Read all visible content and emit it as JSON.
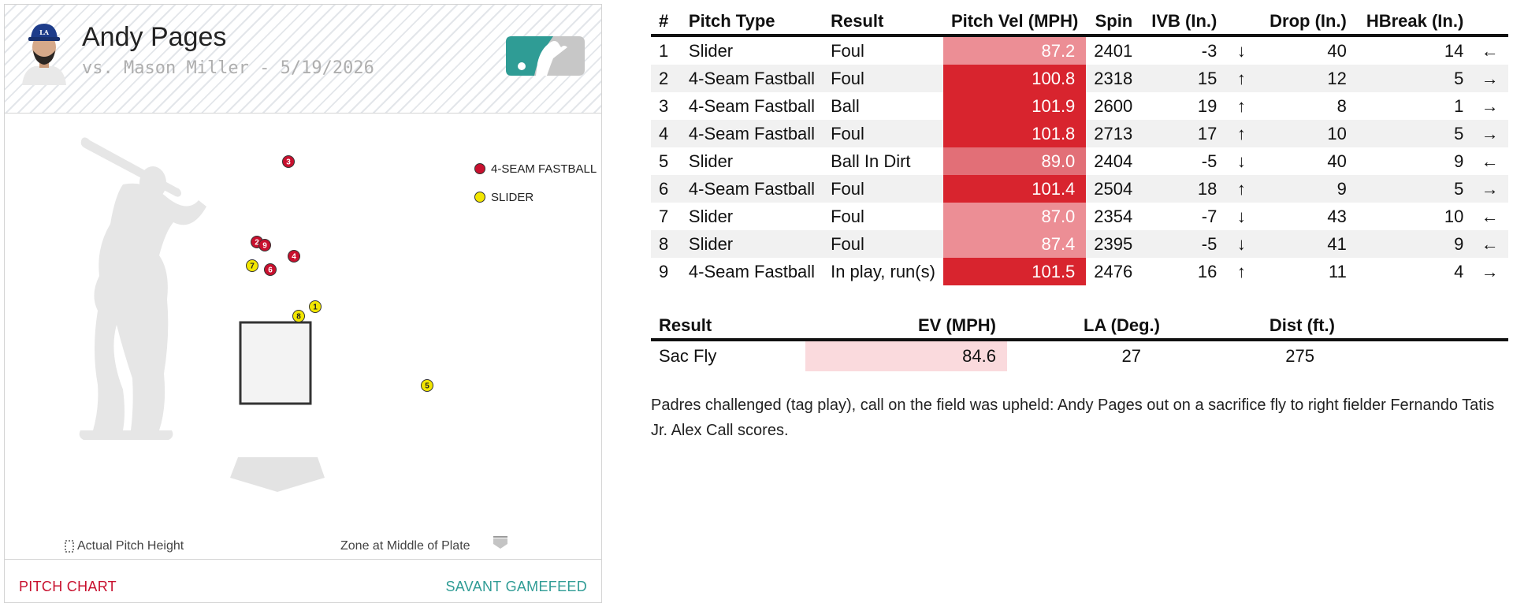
{
  "player": {
    "name": "Andy Pages",
    "matchup": "vs. Mason Miller - 5/19/2026"
  },
  "chart": {
    "legend": [
      {
        "label": "4-SEAM FASTBALL",
        "color": "#c8102e"
      },
      {
        "label": "SLIDER",
        "color": "#f2e600"
      }
    ],
    "pitches": [
      {
        "n": "1",
        "type": "slider"
      },
      {
        "n": "2",
        "type": "fastball"
      },
      {
        "n": "3",
        "type": "fastball"
      },
      {
        "n": "4",
        "type": "fastball"
      },
      {
        "n": "5",
        "type": "slider"
      },
      {
        "n": "6",
        "type": "fastball"
      },
      {
        "n": "7",
        "type": "slider"
      },
      {
        "n": "8",
        "type": "slider"
      },
      {
        "n": "9",
        "type": "fastball"
      }
    ],
    "note_left": "Actual Pitch Height",
    "note_right": "Zone at Middle of Plate"
  },
  "footer": {
    "left_link": "PITCH CHART",
    "right_link": "SAVANT GAMEFEED"
  },
  "pitch_table": {
    "headers": [
      "#",
      "Pitch Type",
      "Result",
      "Pitch Vel (MPH)",
      "Spin",
      "IVB (In.)",
      "",
      "Drop (In.)",
      "HBreak (In.)",
      ""
    ],
    "rows": [
      {
        "num": "1",
        "type": "Slider",
        "result": "Foul",
        "vel": "87.2",
        "spin": "2401",
        "ivb": "-3",
        "ivb_arrow": "↓",
        "drop": "40",
        "hbreak": "14",
        "hb_arrow": "←",
        "vel_color": "#ec8e95"
      },
      {
        "num": "2",
        "type": "4-Seam Fastball",
        "result": "Foul",
        "vel": "100.8",
        "spin": "2318",
        "ivb": "15",
        "ivb_arrow": "↑",
        "drop": "12",
        "hbreak": "5",
        "hb_arrow": "→",
        "vel_color": "#d8242e"
      },
      {
        "num": "3",
        "type": "4-Seam Fastball",
        "result": "Ball",
        "vel": "101.9",
        "spin": "2600",
        "ivb": "19",
        "ivb_arrow": "↑",
        "drop": "8",
        "hbreak": "1",
        "hb_arrow": "→",
        "vel_color": "#d8242e"
      },
      {
        "num": "4",
        "type": "4-Seam Fastball",
        "result": "Foul",
        "vel": "101.8",
        "spin": "2713",
        "ivb": "17",
        "ivb_arrow": "↑",
        "drop": "10",
        "hbreak": "5",
        "hb_arrow": "→",
        "vel_color": "#d8242e"
      },
      {
        "num": "5",
        "type": "Slider",
        "result": "Ball In Dirt",
        "vel": "89.0",
        "spin": "2404",
        "ivb": "-5",
        "ivb_arrow": "↓",
        "drop": "40",
        "hbreak": "9",
        "hb_arrow": "←",
        "vel_color": "#e26f77"
      },
      {
        "num": "6",
        "type": "4-Seam Fastball",
        "result": "Foul",
        "vel": "101.4",
        "spin": "2504",
        "ivb": "18",
        "ivb_arrow": "↑",
        "drop": "9",
        "hbreak": "5",
        "hb_arrow": "→",
        "vel_color": "#d8242e"
      },
      {
        "num": "7",
        "type": "Slider",
        "result": "Foul",
        "vel": "87.0",
        "spin": "2354",
        "ivb": "-7",
        "ivb_arrow": "↓",
        "drop": "43",
        "hbreak": "10",
        "hb_arrow": "←",
        "vel_color": "#ec8e95"
      },
      {
        "num": "8",
        "type": "Slider",
        "result": "Foul",
        "vel": "87.4",
        "spin": "2395",
        "ivb": "-5",
        "ivb_arrow": "↓",
        "drop": "41",
        "hbreak": "9",
        "hb_arrow": "←",
        "vel_color": "#ec8e95"
      },
      {
        "num": "9",
        "type": "4-Seam Fastball",
        "result": "In play, run(s)",
        "vel": "101.5",
        "spin": "2476",
        "ivb": "16",
        "ivb_arrow": "↑",
        "drop": "11",
        "hbreak": "4",
        "hb_arrow": "→",
        "vel_color": "#d8242e"
      }
    ]
  },
  "result_table": {
    "headers": [
      "Result",
      "EV (MPH)",
      "LA (Deg.)",
      "Dist (ft.)"
    ],
    "row": {
      "result": "Sac Fly",
      "ev": "84.6",
      "la": "27",
      "dist": "275"
    }
  },
  "description": "Padres challenged (tag play), call on the field was upheld: Andy Pages out on a sacrifice fly to right fielder Fernando Tatis Jr. Alex Call scores."
}
